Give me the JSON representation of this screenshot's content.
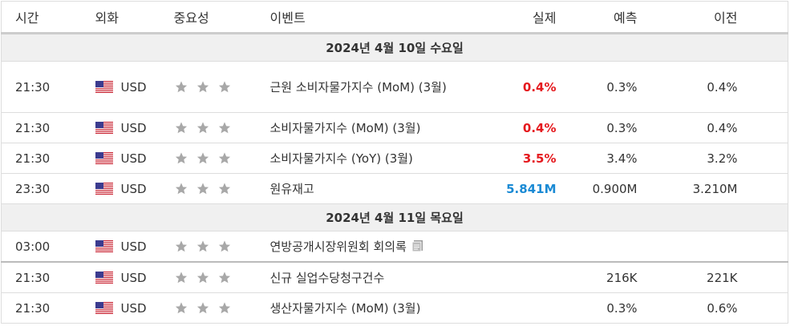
{
  "header": {
    "columns": [
      "시간",
      "외화",
      "중요성",
      "이벤트",
      "실제",
      "예측",
      "이전"
    ]
  },
  "sections": [
    {
      "date": "2024년 4월 10일 수요일",
      "rows": [
        {
          "time": "21:30",
          "currency": "USD",
          "importance": 3,
          "event": "근원 소비자물가지수 (MoM) (3월)",
          "actual": "0.4%",
          "actual_color": "#e5191e",
          "forecast": "0.3%",
          "previous": "0.4%"
        },
        {
          "time": "21:30",
          "currency": "USD",
          "importance": 3,
          "event": "소비자물가지수 (MoM) (3월)",
          "actual": "0.4%",
          "actual_color": "#e5191e",
          "forecast": "0.3%",
          "previous": "0.4%"
        },
        {
          "time": "21:30",
          "currency": "USD",
          "importance": 3,
          "event": "소비자물가지수 (YoY) (3월)",
          "actual": "3.5%",
          "actual_color": "#e5191e",
          "forecast": "3.4%",
          "previous": "3.2%"
        },
        {
          "time": "23:30",
          "currency": "USD",
          "importance": 3,
          "event": "원유재고",
          "actual": "5.841M",
          "actual_color": "#1a8ad4",
          "forecast": "0.900M",
          "previous": "3.210M"
        }
      ]
    },
    {
      "date": "2024년 4월 11일 목요일",
      "rows": [
        {
          "time": "03:00",
          "currency": "USD",
          "importance": 3,
          "event": "연방공개시장위원회 회의록",
          "note_icon": true
        },
        {
          "time": "21:30",
          "currency": "USD",
          "importance": 3,
          "event": "신규 실업수당청구건수",
          "forecast": "216K",
          "previous": "221K"
        },
        {
          "time": "21:30",
          "currency": "USD",
          "importance": 3,
          "event": "생산자물가지수 (MoM) (3월)",
          "forecast": "0.3%",
          "previous": "0.6%"
        }
      ]
    }
  ]
}
